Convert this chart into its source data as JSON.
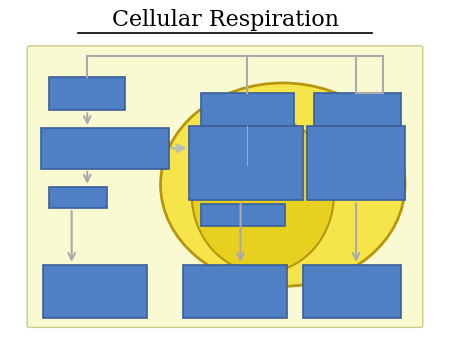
{
  "title": "Cellular Respiration",
  "title_fontsize": 16,
  "background_color": "#ffffff",
  "panel_color": "#fafad2",
  "panel_edge": "#cccc88",
  "box_color": "#4f7fc4",
  "box_edge_color": "#3a5f9a",
  "mito_outer_color": "#f5e44a",
  "mito_outer_edge": "#b8960c",
  "mito_inner_color": "#e8d020",
  "mito_inner_edge": "#b8960c",
  "arrow_color": "#aaaaaa",
  "line_color": "#aaaaaa"
}
